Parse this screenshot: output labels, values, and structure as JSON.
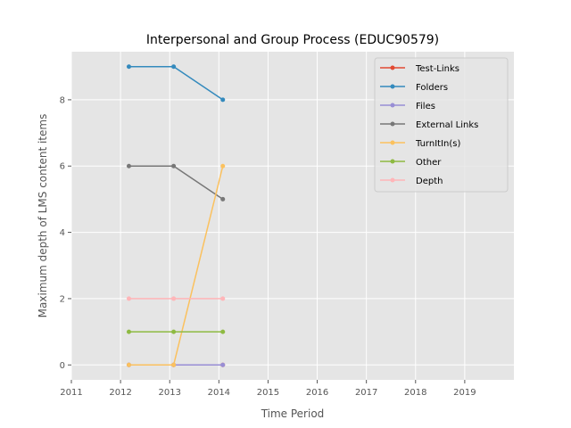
{
  "chart_data": {
    "type": "line",
    "title": "Interpersonal and Group Process (EDUC90579)",
    "xlabel": "Time Period",
    "ylabel": "Maximum depth of LMS content items",
    "xlim": [
      2011,
      2020
    ],
    "ylim": [
      -0.45,
      9.45
    ],
    "xticks": [
      2011,
      2012,
      2013,
      2014,
      2015,
      2016,
      2017,
      2018,
      2019
    ],
    "yticks": [
      0,
      2,
      4,
      6,
      8
    ],
    "grid": true,
    "legend_position": "top-right",
    "x": [
      2012.17,
      2013.08,
      2014.08
    ],
    "series": [
      {
        "name": "Test-Links",
        "color": "#E24A33",
        "values": [
          0,
          0,
          0
        ]
      },
      {
        "name": "Folders",
        "color": "#348ABD",
        "values": [
          9,
          9,
          8
        ]
      },
      {
        "name": "Files",
        "color": "#988ED5",
        "values": [
          0,
          0,
          0
        ]
      },
      {
        "name": "External Links",
        "color": "#777777",
        "values": [
          6,
          6,
          5
        ]
      },
      {
        "name": "TurnItIn(s)",
        "color": "#FBC15E",
        "values": [
          0,
          0,
          6
        ]
      },
      {
        "name": "Other",
        "color": "#8EBA42",
        "values": [
          1,
          1,
          1
        ]
      },
      {
        "name": "Depth",
        "color": "#FFB5B8",
        "values": [
          2,
          2,
          2
        ]
      }
    ]
  }
}
